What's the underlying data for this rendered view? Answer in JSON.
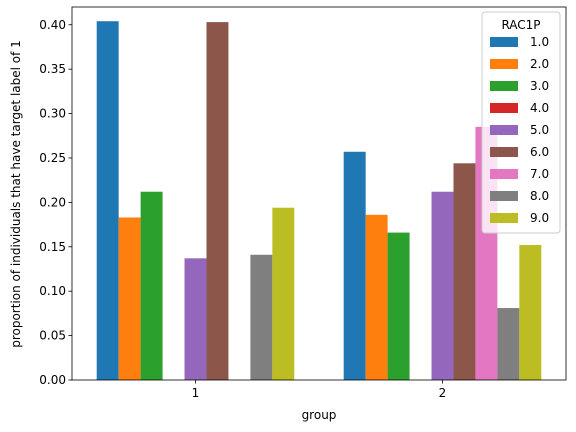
{
  "chart_data": {
    "type": "bar",
    "xlabel": "group",
    "ylabel": "proportion of individuals that have target label of 1",
    "categories": [
      "1",
      "2"
    ],
    "ylim": [
      0,
      0.42
    ],
    "yticks": [
      "0.00",
      "0.05",
      "0.10",
      "0.15",
      "0.20",
      "0.25",
      "0.30",
      "0.35",
      "0.40"
    ],
    "legend": {
      "title": "RAC1P",
      "placement": "top-right"
    },
    "series": [
      {
        "name": "1.0",
        "color": "#1f77b4",
        "values": [
          0.404,
          0.257
        ]
      },
      {
        "name": "2.0",
        "color": "#ff7f0e",
        "values": [
          0.183,
          0.186
        ]
      },
      {
        "name": "3.0",
        "color": "#2ca02c",
        "values": [
          0.212,
          0.166
        ]
      },
      {
        "name": "4.0",
        "color": "#d62728",
        "values": [
          null,
          null
        ]
      },
      {
        "name": "5.0",
        "color": "#9467bd",
        "values": [
          0.137,
          0.212
        ]
      },
      {
        "name": "6.0",
        "color": "#8c564b",
        "values": [
          0.403,
          0.244
        ]
      },
      {
        "name": "7.0",
        "color": "#e377c2",
        "values": [
          null,
          0.285
        ]
      },
      {
        "name": "8.0",
        "color": "#7f7f7f",
        "values": [
          0.141,
          0.081
        ]
      },
      {
        "name": "9.0",
        "color": "#bcbd22",
        "values": [
          0.194,
          0.152
        ]
      }
    ]
  }
}
